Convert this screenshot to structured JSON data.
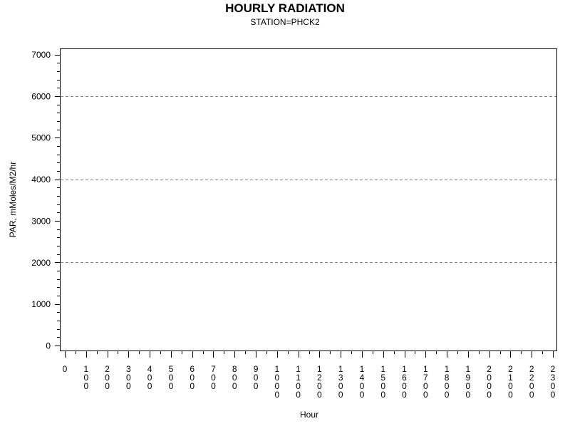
{
  "chart_data": {
    "type": "line",
    "title": "HOURLY RADIATION",
    "subtitle": "STATION=PHCK2",
    "xlabel": "Hour",
    "ylabel": "PAR, mMoles/M2/hr",
    "xlim": [
      0,
      2300
    ],
    "ylim": [
      0,
      7000
    ],
    "x_ticks": [
      "0",
      "100",
      "200",
      "300",
      "400",
      "500",
      "600",
      "700",
      "800",
      "900",
      "1000",
      "1100",
      "1200",
      "1300",
      "1400",
      "1500",
      "1600",
      "1700",
      "1800",
      "1900",
      "2000",
      "2100",
      "2200",
      "2300"
    ],
    "y_ticks": [
      "0",
      "1000",
      "2000",
      "3000",
      "4000",
      "5000",
      "6000",
      "7000"
    ],
    "y_minor_step": 200,
    "x_minor_step": 50,
    "reference_lines": [
      2000,
      4000,
      6000
    ],
    "grid": false,
    "series": [],
    "colors": {
      "axis": "#000000",
      "reference_line": "#808080"
    }
  }
}
